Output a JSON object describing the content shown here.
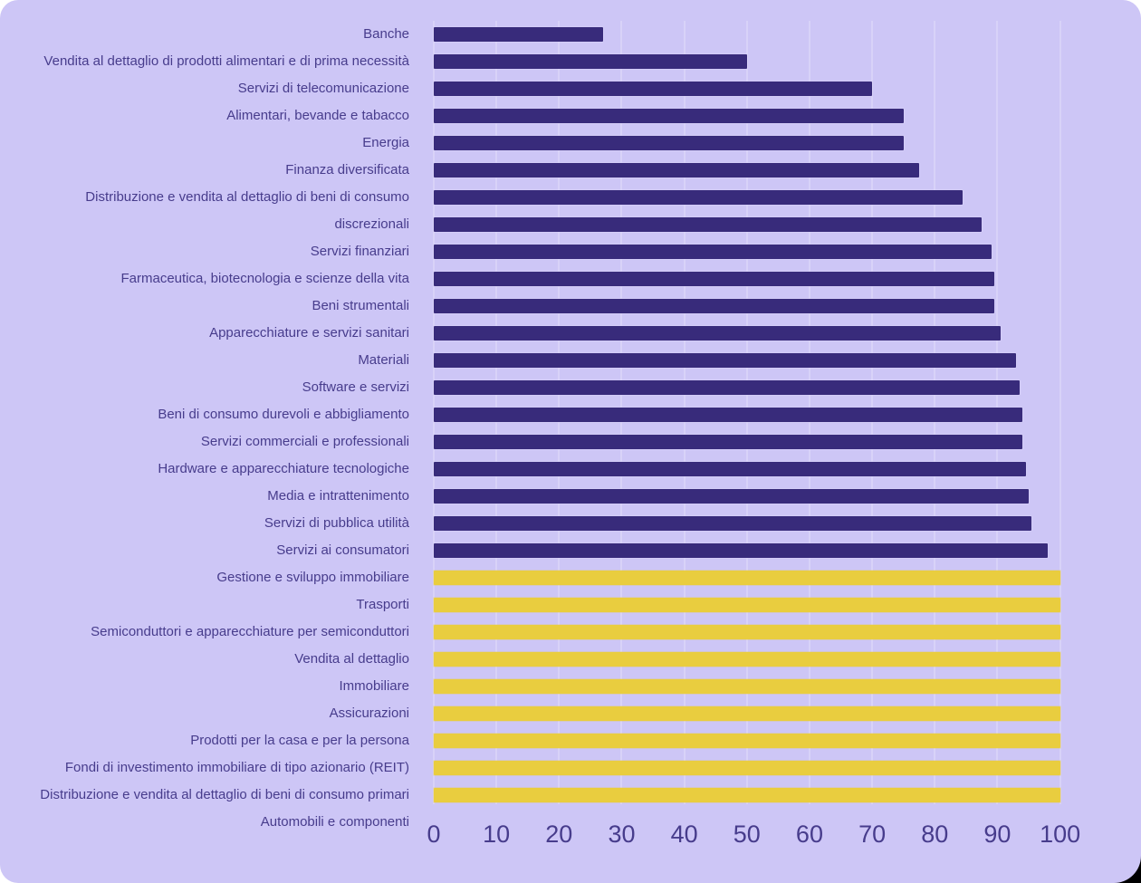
{
  "chart_data": {
    "type": "bar",
    "orientation": "horizontal",
    "title": "",
    "xlabel": "",
    "ylabel": "",
    "xlim": [
      0,
      100
    ],
    "x_ticks": [
      0,
      10,
      20,
      30,
      40,
      50,
      60,
      70,
      80,
      90,
      100
    ],
    "grid": "vertical",
    "legend": "none",
    "rows": [
      {
        "label": "Banche",
        "value": 27,
        "series": "dark"
      },
      {
        "label": "Vendita al dettaglio di prodotti alimentari e di prima necessità",
        "value": 50,
        "series": "dark"
      },
      {
        "label": "Servizi di telecomunicazione",
        "value": 70,
        "series": "dark"
      },
      {
        "label": "Alimentari, bevande e tabacco",
        "value": 75,
        "series": "dark"
      },
      {
        "label": "Energia",
        "value": 75,
        "series": "dark"
      },
      {
        "label": "Finanza diversificata",
        "value": 77.5,
        "series": "dark"
      },
      {
        "label": "Distribuzione e vendita al dettaglio di beni di consumo",
        "value": 84.5,
        "series": "dark"
      },
      {
        "label": "discrezionali",
        "value": 87.5,
        "series": "dark"
      },
      {
        "label": "Servizi finanziari",
        "value": 89,
        "series": "dark"
      },
      {
        "label": "Farmaceutica, biotecnologia e scienze della vita",
        "value": 89.5,
        "series": "dark"
      },
      {
        "label": "Beni strumentali",
        "value": 89.5,
        "series": "dark"
      },
      {
        "label": "Apparecchiature e servizi sanitari",
        "value": 90.5,
        "series": "dark"
      },
      {
        "label": "Materiali",
        "value": 93,
        "series": "dark"
      },
      {
        "label": "Software e servizi",
        "value": 93.5,
        "series": "dark"
      },
      {
        "label": "Beni di consumo durevoli e abbigliamento",
        "value": 94,
        "series": "dark"
      },
      {
        "label": "Servizi commerciali e professionali",
        "value": 94,
        "series": "dark"
      },
      {
        "label": "Hardware e apparecchiature tecnologiche",
        "value": 94.5,
        "series": "dark"
      },
      {
        "label": "Media e intrattenimento",
        "value": 95,
        "series": "dark"
      },
      {
        "label": "Servizi di pubblica utilità",
        "value": 95.5,
        "series": "dark"
      },
      {
        "label": "Servizi ai consumatori",
        "value": 98,
        "series": "dark"
      },
      {
        "label": "Gestione e sviluppo immobiliare",
        "value": 100,
        "series": "yellow"
      },
      {
        "label": "Trasporti",
        "value": 100,
        "series": "yellow"
      },
      {
        "label": "Semiconduttori e apparecchiature per semiconduttori",
        "value": 100,
        "series": "yellow"
      },
      {
        "label": "Vendita al dettaglio",
        "value": 100,
        "series": "yellow"
      },
      {
        "label": "Immobiliare",
        "value": 100,
        "series": "yellow"
      },
      {
        "label": "Assicurazioni",
        "value": 100,
        "series": "yellow"
      },
      {
        "label": "Prodotti per la casa e per la persona",
        "value": 100,
        "series": "yellow"
      },
      {
        "label": "Fondi di investimento immobiliare di tipo azionario (REIT)",
        "value": 100,
        "series": "yellow"
      },
      {
        "label": "Distribuzione e vendita al dettaglio di beni di consumo primari",
        "value": 100,
        "series": "yellow"
      },
      {
        "label": "Automobili e componenti",
        "value": 0,
        "series": "dark"
      }
    ],
    "colors": {
      "bar_dark": "#382B7B",
      "bar_yellow": "#E9CD3F",
      "panel_background": "#CDC6F6",
      "gridline": "#D8D2F8",
      "text": "#473C8C",
      "page_background": "#FFFFFF",
      "corner_bottom_right": "#000000"
    }
  }
}
